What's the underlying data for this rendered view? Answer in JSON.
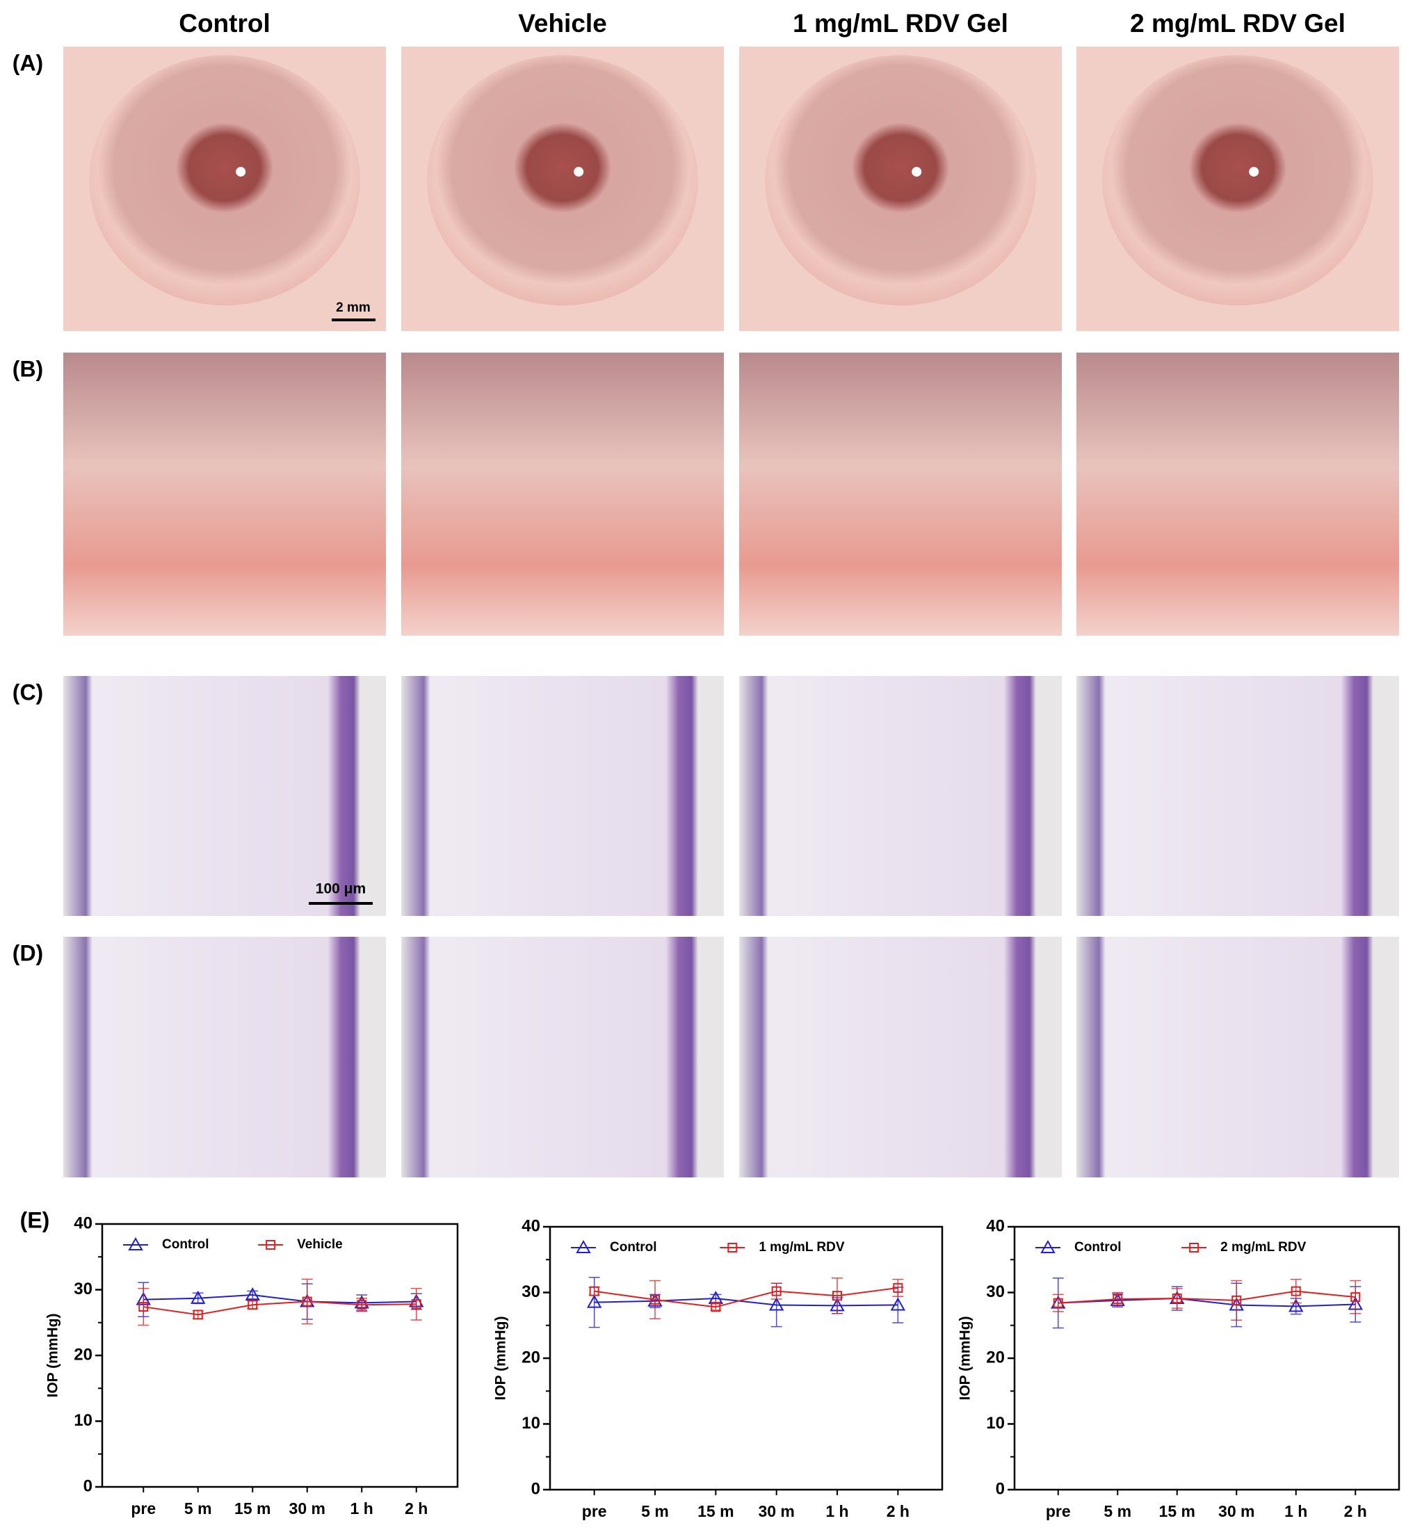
{
  "columns": [
    "Control",
    "Vehicle",
    "1 mg/mL RDV Gel",
    "2 mg/mL RDV Gel"
  ],
  "rows": [
    "(A)",
    "(B)",
    "(C)",
    "(D)"
  ],
  "scale_bars": [
    "2 mm",
    "100 μm"
  ],
  "panel_e": "(E)",
  "chart_data": [
    {
      "type": "line",
      "ylabel": "IOP (mmHg)",
      "categories": [
        "pre",
        "5 m",
        "15 m",
        "30 m",
        "1 h",
        "2 h"
      ],
      "ylim": [
        0,
        40
      ],
      "yticks": [
        0,
        10,
        20,
        30,
        40
      ],
      "series": [
        {
          "name": "Control",
          "color": "#1f1fd0",
          "marker": "triangle",
          "values": [
            28.5,
            28.7,
            29.2,
            28.2,
            28.0,
            28.2
          ],
          "errors": [
            2.6,
            0.8,
            0.6,
            2.7,
            1.2,
            1.2
          ]
        },
        {
          "name": "Vehicle",
          "color": "#e01f1f",
          "marker": "square",
          "values": [
            27.4,
            26.2,
            27.7,
            28.2,
            27.7,
            27.8
          ],
          "errors": [
            2.8,
            0.6,
            0.6,
            3.4,
            1.0,
            2.4
          ]
        }
      ]
    },
    {
      "type": "line",
      "ylabel": "IOP (mmHg)",
      "categories": [
        "pre",
        "5 m",
        "15 m",
        "30 m",
        "1 h",
        "2 h"
      ],
      "ylim": [
        0,
        40
      ],
      "yticks": [
        0,
        10,
        20,
        30,
        40
      ],
      "series": [
        {
          "name": "Control",
          "color": "#1f1fd0",
          "marker": "triangle",
          "values": [
            28.5,
            28.7,
            29.1,
            28.1,
            28.0,
            28.1
          ],
          "errors": [
            3.8,
            1.0,
            0.6,
            3.3,
            1.2,
            2.7
          ]
        },
        {
          "name": "1 mg/mL RDV",
          "color": "#e01f1f",
          "marker": "square",
          "values": [
            30.2,
            28.9,
            27.8,
            30.2,
            29.5,
            30.7
          ],
          "errors": [
            0.6,
            2.9,
            0.5,
            1.2,
            2.7,
            1.3
          ]
        }
      ]
    },
    {
      "type": "line",
      "ylabel": "IOP (mmHg)",
      "categories": [
        "pre",
        "5 m",
        "15 m",
        "30 m",
        "1 h",
        "2 h"
      ],
      "ylim": [
        0,
        40
      ],
      "yticks": [
        0,
        10,
        20,
        30,
        40
      ],
      "series": [
        {
          "name": "Control",
          "color": "#1f1fd0",
          "marker": "triangle",
          "values": [
            28.4,
            28.8,
            29.1,
            28.1,
            27.9,
            28.2
          ],
          "errors": [
            3.8,
            1.0,
            1.8,
            3.3,
            1.2,
            2.7
          ]
        },
        {
          "name": "2 mg/mL RDV",
          "color": "#e01f1f",
          "marker": "square",
          "values": [
            28.4,
            29.0,
            29.1,
            28.8,
            30.2,
            29.3
          ],
          "errors": [
            1.3,
            1.0,
            1.5,
            3.0,
            1.8,
            2.5
          ]
        }
      ]
    }
  ]
}
